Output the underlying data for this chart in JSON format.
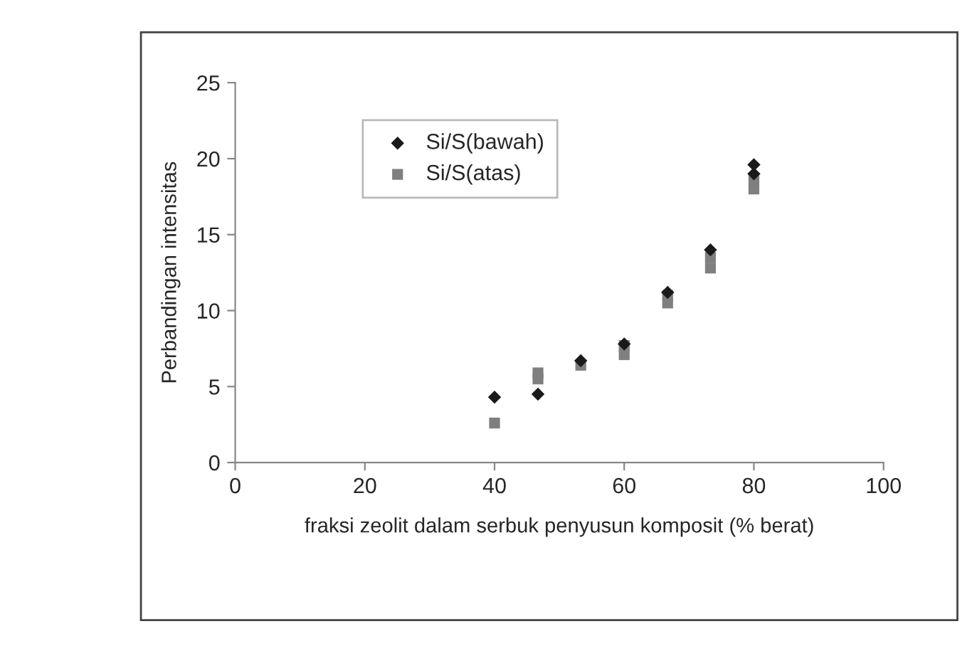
{
  "chart_data": {
    "type": "scatter",
    "xlabel": "fraksi zeolit dalam serbuk penyusun komposit (% berat)",
    "ylabel": "Perbandingan intensitas",
    "xlim": [
      0,
      100
    ],
    "xticks": [
      0,
      20,
      40,
      60,
      80,
      100
    ],
    "ylim": [
      0,
      25
    ],
    "yticks": [
      0,
      5,
      10,
      15,
      20,
      25
    ],
    "grid": false,
    "legend": "top left",
    "series": [
      {
        "name": "Si/S(bawah)",
        "color": "#1a1a1a",
        "marker": "diamond",
        "x": [
          40,
          46.7,
          53.3,
          60,
          66.7,
          73.3,
          80,
          80
        ],
        "values": [
          4.3,
          4.5,
          6.7,
          7.8,
          11.2,
          14.0,
          19.6,
          19.0
        ]
      },
      {
        "name": "Si/S(atas)",
        "color": "#7f7f7f",
        "marker": "square",
        "x": [
          40,
          46.7,
          46.7,
          53.3,
          60,
          60,
          66.7,
          66.7,
          73.3,
          73.3,
          80,
          80
        ],
        "values": [
          2.6,
          5.5,
          5.9,
          6.4,
          7.1,
          7.7,
          10.5,
          11.0,
          12.8,
          13.5,
          18.0,
          18.6
        ]
      }
    ]
  }
}
